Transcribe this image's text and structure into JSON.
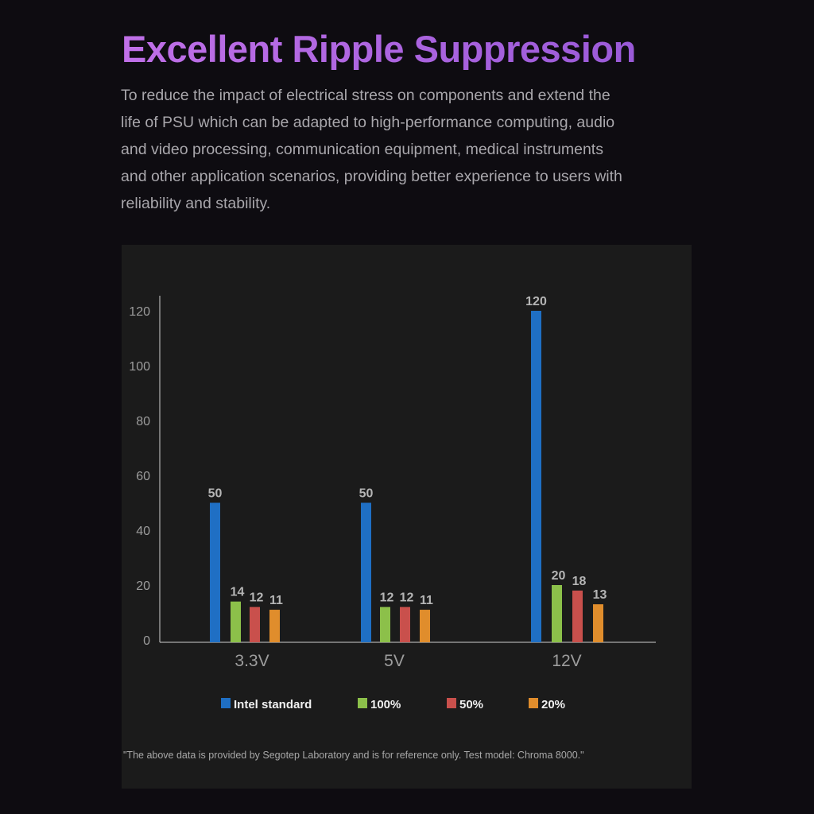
{
  "header": {
    "title": "Excellent Ripple Suppression",
    "description": "To reduce the impact of electrical stress on components and extend the life of PSU which can be adapted to high-performance computing, audio and video processing, communication equipment, medical instruments and other application scenarios, providing better experience to users with reliability and stability."
  },
  "chart_data": {
    "type": "bar",
    "title": "",
    "xlabel": "",
    "ylabel": "",
    "ylim": [
      0,
      120
    ],
    "yticks": [
      0,
      20,
      40,
      60,
      80,
      100,
      120
    ],
    "categories": [
      "3.3V",
      "5V",
      "12V"
    ],
    "series": [
      {
        "name": "Intel standard",
        "color": "#1f6fc4",
        "values": [
          50,
          50,
          120
        ]
      },
      {
        "name": "100%",
        "color": "#8cc04a",
        "values": [
          14,
          12,
          20
        ]
      },
      {
        "name": "50%",
        "color": "#c9504c",
        "values": [
          12,
          12,
          18
        ]
      },
      {
        "name": "20%",
        "color": "#e08d2c",
        "values": [
          11,
          11,
          13
        ]
      }
    ],
    "legend_position": "bottom",
    "grid": false
  },
  "footnote": "\"The above data is provided by Segotep Laboratory and is for reference only. Test model: Chroma 8000.\""
}
